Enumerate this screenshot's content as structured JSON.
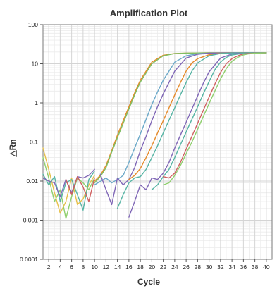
{
  "chart_data": {
    "type": "line",
    "title": "Amplification Plot",
    "xlabel": "Cycle",
    "ylabel": "△Rn",
    "xlim": [
      1,
      41
    ],
    "ylim": [
      0.0001,
      100
    ],
    "y_scale": "log",
    "x_tick_values": [
      2,
      4,
      6,
      8,
      10,
      12,
      14,
      16,
      18,
      20,
      22,
      24,
      26,
      28,
      30,
      32,
      34,
      36,
      38,
      40
    ],
    "x_tick_labels": [
      "2",
      "4",
      "6",
      "8",
      "10",
      "12",
      "14",
      "16",
      "18",
      "20",
      "22",
      "24",
      "26",
      "28",
      "30",
      "32",
      "34",
      "36",
      "38",
      "40"
    ],
    "y_tick_values": [
      0.0001,
      0.001,
      0.01,
      0.1,
      1,
      10,
      100
    ],
    "y_tick_labels": [
      "0.0001",
      "0.001",
      "0.01",
      "0.1",
      "1",
      "10",
      "100"
    ],
    "grid": true,
    "series": [
      {
        "color": "#8fcf6e",
        "x": [
          1,
          2,
          3,
          4,
          5,
          6,
          7,
          8,
          9,
          10
        ],
        "y": [
          0.04,
          0.012,
          0.003,
          0.006,
          0.0011,
          0.004,
          0.012,
          0.009,
          0.006,
          0.012
        ]
      },
      {
        "color": "#e6c04a",
        "x": [
          1,
          2,
          3,
          4,
          5,
          6,
          7,
          8,
          9,
          10
        ],
        "y": [
          0.07,
          0.02,
          0.005,
          0.0015,
          0.003,
          0.012,
          0.0025,
          0.0035,
          0.008,
          0.014
        ]
      },
      {
        "color": "#56b4a4",
        "x": [
          1,
          2,
          3,
          4,
          5,
          6,
          7,
          8,
          9,
          10
        ],
        "y": [
          0.015,
          0.008,
          0.013,
          0.003,
          0.009,
          0.011,
          0.0045,
          0.0018,
          0.011,
          0.018
        ]
      },
      {
        "color": "#7f66b6",
        "x": [
          1,
          2,
          3,
          4,
          5,
          6,
          7,
          8,
          9,
          10
        ],
        "y": [
          0.012,
          0.01,
          0.009,
          0.004,
          0.011,
          0.005,
          0.013,
          0.012,
          0.014,
          0.02
        ]
      },
      {
        "color": "#d06060",
        "x": [
          5,
          6,
          7,
          8,
          9,
          10
        ],
        "y": [
          0.011,
          0.0045,
          0.013,
          0.007,
          0.003,
          0.012
        ]
      },
      {
        "color": "#e58a2a",
        "x": [
          10,
          11,
          12,
          13,
          14,
          15,
          16,
          17,
          18,
          20,
          22,
          24,
          26,
          28,
          30,
          32,
          34,
          36,
          38,
          40
        ],
        "y": [
          0.01,
          0.014,
          0.025,
          0.06,
          0.15,
          0.35,
          0.8,
          1.8,
          3.8,
          11,
          16.5,
          18.3,
          18.7,
          18.9,
          19,
          19,
          19,
          19,
          19,
          19
        ]
      },
      {
        "color": "#7fbf63",
        "x": [
          10,
          11,
          12,
          13,
          14,
          15,
          16,
          17,
          18,
          20,
          22,
          24,
          26,
          28,
          30,
          32,
          34,
          36,
          38,
          40
        ],
        "y": [
          0.009,
          0.013,
          0.022,
          0.055,
          0.13,
          0.3,
          0.7,
          1.6,
          3.4,
          10,
          16,
          18.2,
          18.7,
          18.9,
          19,
          19,
          19,
          19,
          19,
          19
        ]
      },
      {
        "color": "#6aa8c8",
        "x": [
          10,
          12,
          13,
          14,
          15,
          16,
          17,
          18,
          19,
          20,
          21,
          22,
          24,
          26,
          28,
          30,
          32,
          34,
          36,
          38,
          40
        ],
        "y": [
          0.008,
          0.012,
          0.009,
          0.011,
          0.014,
          0.03,
          0.07,
          0.16,
          0.38,
          0.9,
          1.9,
          3.8,
          11,
          16,
          18,
          18.6,
          18.8,
          19,
          19,
          19,
          19
        ]
      },
      {
        "color": "#7f66b6",
        "x": [
          11,
          12,
          13,
          14,
          15,
          16,
          17,
          18,
          19,
          20,
          21,
          22,
          24,
          26,
          28,
          30,
          32,
          34,
          36,
          38,
          40
        ],
        "y": [
          0.015,
          0.006,
          0.0025,
          0.012,
          0.008,
          0.011,
          0.022,
          0.06,
          0.14,
          0.35,
          0.8,
          1.7,
          6.5,
          14,
          17.5,
          18.6,
          18.9,
          19,
          19,
          19,
          19
        ]
      },
      {
        "color": "#e58a2a",
        "x": [
          16,
          17,
          18,
          19,
          20,
          21,
          22,
          23,
          24,
          25,
          26,
          27,
          28,
          30,
          32,
          34,
          36,
          38,
          40
        ],
        "y": [
          0.011,
          0.014,
          0.021,
          0.04,
          0.08,
          0.17,
          0.35,
          0.75,
          1.6,
          3.3,
          6.5,
          10.5,
          13.5,
          17,
          18.4,
          18.8,
          19,
          19,
          19
        ]
      },
      {
        "color": "#56b4a4",
        "x": [
          14,
          15,
          16,
          17,
          18,
          19,
          20,
          21,
          22,
          23,
          24,
          25,
          26,
          27,
          28,
          30,
          32,
          34,
          36,
          38,
          40
        ],
        "y": [
          0.002,
          0.0045,
          0.009,
          0.012,
          0.013,
          0.02,
          0.04,
          0.08,
          0.17,
          0.36,
          0.75,
          1.6,
          3.3,
          6.5,
          10.5,
          16,
          18.3,
          18.8,
          19,
          19,
          19
        ]
      },
      {
        "color": "#7f66b6",
        "x": [
          16,
          17,
          18,
          19,
          20,
          21,
          22,
          23,
          24,
          25,
          26,
          27,
          28,
          29,
          30,
          32,
          34,
          36,
          38,
          40
        ],
        "y": [
          0.0012,
          0.003,
          0.008,
          0.006,
          0.012,
          0.011,
          0.016,
          0.03,
          0.07,
          0.15,
          0.32,
          0.7,
          1.5,
          3.2,
          6.2,
          14,
          17.8,
          18.7,
          19,
          19
        ]
      },
      {
        "color": "#56b4a4",
        "x": [
          20,
          21,
          22,
          23,
          24,
          25,
          26,
          27,
          28,
          29,
          30,
          31,
          32,
          33,
          34,
          36,
          38,
          40
        ],
        "y": [
          0.006,
          0.008,
          0.013,
          0.02,
          0.04,
          0.085,
          0.18,
          0.38,
          0.8,
          1.7,
          3.5,
          7,
          11,
          14.5,
          16.8,
          18.6,
          19,
          19
        ]
      },
      {
        "color": "#d06060",
        "x": [
          22,
          23,
          24,
          25,
          26,
          27,
          28,
          29,
          30,
          31,
          32,
          33,
          34,
          35,
          36,
          38,
          40
        ],
        "y": [
          0.013,
          0.012,
          0.016,
          0.03,
          0.065,
          0.14,
          0.3,
          0.65,
          1.4,
          3,
          6,
          10,
          13.5,
          16,
          17.8,
          18.8,
          19
        ]
      },
      {
        "color": "#8fcf6e",
        "x": [
          22,
          23,
          24,
          25,
          26,
          27,
          28,
          29,
          30,
          31,
          32,
          33,
          34,
          35,
          36,
          37,
          38,
          40
        ],
        "y": [
          0.008,
          0.009,
          0.014,
          0.025,
          0.05,
          0.1,
          0.21,
          0.45,
          0.95,
          2,
          4.1,
          7.5,
          11.5,
          14.5,
          16.8,
          18,
          18.7,
          19
        ]
      }
    ]
  }
}
